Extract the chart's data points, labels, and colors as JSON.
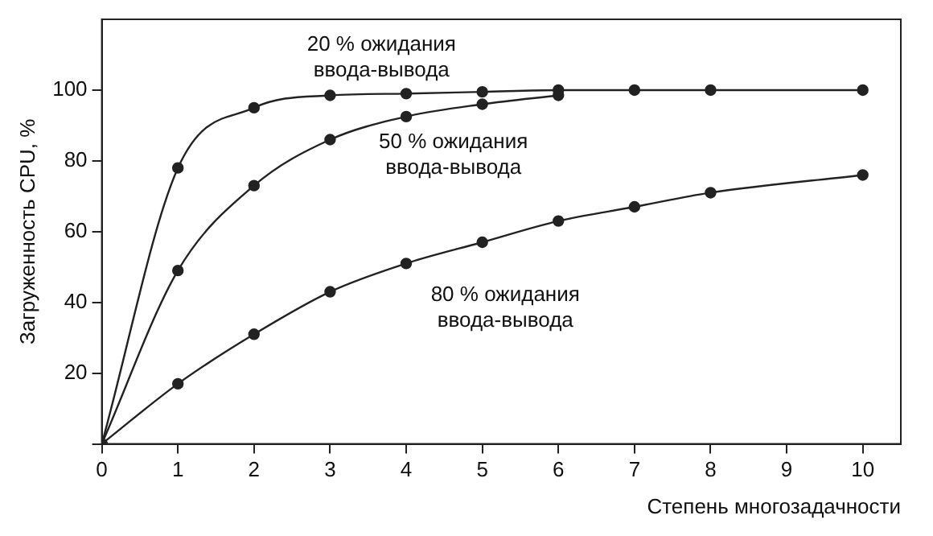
{
  "chart_data": {
    "type": "line",
    "xlabel": "Степень многозадачности",
    "ylabel": "Загруженность CPU, %",
    "xlim": [
      0,
      10.5
    ],
    "ylim": [
      0,
      120
    ],
    "xticks": [
      0,
      1,
      2,
      3,
      4,
      5,
      6,
      7,
      8,
      9,
      10
    ],
    "yticks": [
      {
        "value": 0,
        "label": null
      },
      20,
      40,
      60,
      80,
      100
    ],
    "grid": false,
    "legend": false,
    "marker": "circle",
    "line_style": "solid",
    "series": [
      {
        "color": "#222222",
        "x": [
          0,
          1,
          2,
          3,
          4,
          5,
          6,
          7,
          8,
          10
        ],
        "values": [
          0,
          78,
          95,
          98.5,
          99,
          99.5,
          100,
          100,
          100,
          100
        ]
      },
      {
        "color": "#222222",
        "x": [
          0,
          1,
          2,
          3,
          4,
          5,
          6
        ],
        "values": [
          0,
          49,
          73,
          86,
          92.5,
          96,
          98.5
        ]
      },
      {
        "color": "#222222",
        "x": [
          0,
          1,
          2,
          3,
          4,
          5,
          6,
          7,
          8,
          10
        ],
        "values": [
          0,
          17,
          31,
          43,
          51,
          57,
          63,
          67,
          71,
          76
        ]
      }
    ],
    "annotations": [
      "20 % ожидания\nввода-вывода",
      "50 % ожидания\nввода-вывода",
      "80 % ожидания\nввода-вывода"
    ]
  }
}
